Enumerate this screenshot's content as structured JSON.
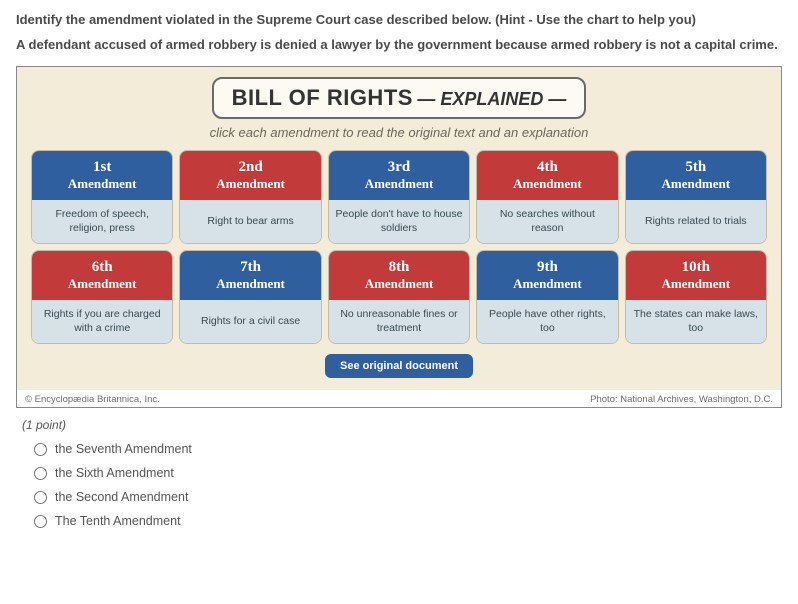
{
  "instruction": "Identify the amendment violated in the Supreme Court case described below. (Hint - Use the chart to help you)",
  "scenario": "A defendant accused of armed robbery is denied a lawyer by the government because armed robbery is not a capital crime.",
  "banner": {
    "main": "BILL OF RIGHTS",
    "sub": " — EXPLAINED —"
  },
  "subtitle": "click each amendment to read the original text and an explanation",
  "amend_label": "Amendment",
  "cards": [
    {
      "ord": "1st",
      "desc": "Freedom of speech, religion, press",
      "color": "blue"
    },
    {
      "ord": "2nd",
      "desc": "Right to bear arms",
      "color": "red"
    },
    {
      "ord": "3rd",
      "desc": "People don't have to house soldiers",
      "color": "blue"
    },
    {
      "ord": "4th",
      "desc": "No searches without reason",
      "color": "red"
    },
    {
      "ord": "5th",
      "desc": "Rights related to trials",
      "color": "blue"
    },
    {
      "ord": "6th",
      "desc": "Rights if you are charged with a crime",
      "color": "red"
    },
    {
      "ord": "7th",
      "desc": "Rights for a civil case",
      "color": "blue"
    },
    {
      "ord": "8th",
      "desc": "No unreasonable fines or treatment",
      "color": "red"
    },
    {
      "ord": "9th",
      "desc": "People have other rights, too",
      "color": "blue"
    },
    {
      "ord": "10th",
      "desc": "The states can make laws, too",
      "color": "red"
    }
  ],
  "see_doc": "See original document",
  "copyright": "© Encyclopædia Britannica, Inc.",
  "photo_credit": "Photo: National Archives, Washington, D.C.",
  "points": "(1 point)",
  "options": [
    "the Seventh Amendment",
    "the Sixth Amendment",
    "the Second Amendment",
    "The Tenth Amendment"
  ],
  "colors": {
    "blue": "#2f5f9e",
    "red": "#c33a3a",
    "chart_bg": "#f3ecd9",
    "card_bot_bg": "#d6e2e8"
  }
}
